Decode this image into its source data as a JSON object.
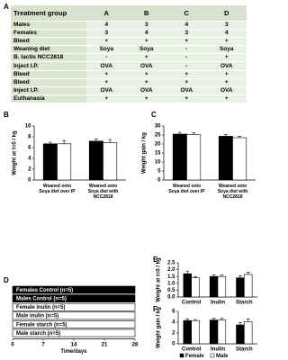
{
  "table": {
    "panel": "A",
    "header": [
      "Treatment group",
      "A",
      "B",
      "C",
      "D"
    ],
    "rows": [
      [
        "Males",
        "4",
        "3",
        "4",
        "3"
      ],
      [
        "Females",
        "3",
        "4",
        "3",
        "4"
      ],
      [
        "Bleed",
        "+",
        "+",
        "+",
        "+"
      ],
      [
        "Weaning diet",
        "Soya",
        "Soya",
        "-",
        "Soya"
      ],
      [
        "B. lactis NCC2818",
        "-",
        "+",
        "-",
        "+"
      ],
      [
        "Inject I.P.",
        "OVA",
        "OVA",
        "-",
        "OVA"
      ],
      [
        "Bleed",
        "+",
        "+",
        "+",
        "+"
      ],
      [
        "Bleed",
        "+",
        "+",
        "+",
        "+"
      ],
      [
        "Inject I.P.",
        "OVA",
        "OVA",
        "OVA",
        "OVA"
      ],
      [
        "Euthanasia",
        "+",
        "+",
        "+",
        "+"
      ]
    ]
  },
  "chart_data": [
    {
      "type": "bar",
      "panel": "B",
      "y_label": "Weight at t=0 / kg",
      "categories": [
        "Weaned onto Soya diet over IP",
        "Weaned onto Soya diet with NCC2818"
      ],
      "series": [
        {
          "color": "#000000",
          "values": [
            6.7,
            7.2
          ],
          "errors": [
            0.3,
            0.4
          ]
        },
        {
          "color": "#ffffff",
          "values": [
            6.7,
            6.9
          ],
          "errors": [
            0.6,
            0.6
          ]
        }
      ],
      "ylim": [
        0,
        10
      ],
      "yticks": [
        0,
        2,
        4,
        6,
        8,
        10
      ]
    },
    {
      "type": "bar",
      "panel": "C",
      "y_label": "Weight gain / kg",
      "categories": [
        "Weaned onto Soya diet over IP",
        "Weaned onto Soya diet with NCC2818"
      ],
      "series": [
        {
          "color": "#000000",
          "values": [
            25.5,
            24.3
          ],
          "errors": [
            1,
            1
          ]
        },
        {
          "color": "#ffffff",
          "values": [
            25.2,
            23.5
          ],
          "errors": [
            1,
            0.8
          ]
        }
      ],
      "ylim": [
        0,
        30
      ],
      "yticks": [
        0,
        5,
        10,
        15,
        20,
        25,
        30
      ]
    },
    {
      "type": "bar",
      "panel": "E",
      "y_label": "Weight at t=0 / kg",
      "categories": [
        "Control",
        "Inulin",
        "Starch"
      ],
      "series": [
        {
          "color": "#000000",
          "values": [
            1.7,
            1.5,
            1.4
          ],
          "errors": [
            0.2,
            0.1,
            0.15
          ]
        },
        {
          "color": "#ffffff",
          "values": [
            1.4,
            1.5,
            1.65
          ],
          "errors": [
            0.1,
            0.1,
            0.15
          ]
        }
      ],
      "ylim": [
        0,
        2.5
      ],
      "yticks": [
        {
          "value": 0,
          "label": "0.0"
        },
        0.5,
        {
          "value": 1,
          "label": "1.0"
        },
        1.5,
        {
          "value": 2,
          "label": "2.0"
        },
        2.5
      ]
    },
    {
      "type": "bar",
      "panel": "F",
      "y_label": "Weight gain / kg",
      "categories": [
        "Control",
        "Inulin",
        "Starch"
      ],
      "series": [
        {
          "name": "Female",
          "color": "#000000",
          "values": [
            4.3,
            4.4,
            3.5
          ],
          "errors": [
            0.3,
            0.3,
            0.4
          ]
        },
        {
          "name": "Male",
          "color": "#ffffff",
          "values": [
            4.3,
            4.4,
            4.1
          ],
          "errors": [
            0.2,
            0.3,
            0.5
          ]
        }
      ],
      "ylim": [
        0,
        6
      ],
      "yticks": [
        0,
        2,
        4,
        6
      ]
    }
  ],
  "timeline": {
    "panel": "D",
    "x_label": "Time/days",
    "xlim": [
      0,
      28
    ],
    "xticks": [
      0,
      7,
      14,
      21,
      28
    ],
    "rows": [
      {
        "name": "Females Control (n=5)",
        "color": "#000000"
      },
      {
        "name": "Males Control (n=5)",
        "color": "#000000"
      },
      {
        "name": "Female inulin (n=5)",
        "color": "#ffffff"
      },
      {
        "name": "Male inulin (n=5)",
        "color": "#ffffff"
      },
      {
        "name": "Female starch (n=5)",
        "color": "#ffffff"
      },
      {
        "name": "Male starch (n=5)",
        "color": "#ffffff"
      }
    ]
  }
}
